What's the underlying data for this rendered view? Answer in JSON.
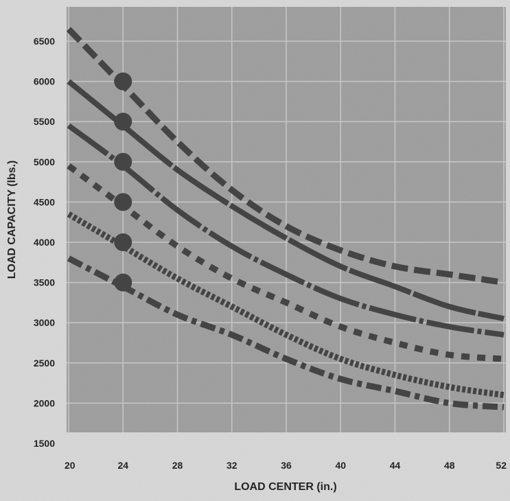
{
  "chart_data": {
    "type": "line",
    "xlabel": "LOAD CENTER (in.)",
    "ylabel": "LOAD CAPACITY (lbs.)",
    "xlim": [
      20,
      52
    ],
    "ylim": [
      1500,
      6700
    ],
    "x_ticks": [
      "20",
      "24",
      "28",
      "32",
      "36",
      "40",
      "44",
      "48",
      "52"
    ],
    "y_ticks": [
      "1500",
      "2000",
      "2500",
      "3000",
      "3500",
      "4000",
      "4500",
      "5000",
      "5500",
      "6000",
      "6500"
    ],
    "grid": true,
    "series": [
      {
        "style": "long-dash",
        "x": [
          20,
          24,
          28,
          32,
          36,
          40,
          44,
          48,
          52
        ],
        "values": [
          6650,
          5950,
          5250,
          4650,
          4200,
          3900,
          3700,
          3600,
          3500
        ]
      },
      {
        "style": "dash-stroke",
        "x": [
          20,
          24,
          28,
          32,
          36,
          40,
          44,
          48,
          52
        ],
        "values": [
          6000,
          5450,
          4900,
          4450,
          4050,
          3700,
          3450,
          3200,
          3050
        ]
      },
      {
        "style": "solid-dot",
        "x": [
          20,
          24,
          28,
          32,
          36,
          40,
          44,
          48,
          52
        ],
        "values": [
          5450,
          4950,
          4400,
          3950,
          3600,
          3300,
          3100,
          2950,
          2850
        ]
      },
      {
        "style": "slanted-dash",
        "x": [
          20,
          24,
          28,
          32,
          36,
          40,
          44,
          48,
          52
        ],
        "values": [
          4950,
          4450,
          3950,
          3550,
          3250,
          2950,
          2750,
          2600,
          2550
        ]
      },
      {
        "style": "fine-dash",
        "x": [
          20,
          24,
          28,
          32,
          36,
          40,
          44,
          48,
          52
        ],
        "values": [
          4350,
          3950,
          3550,
          3200,
          2850,
          2550,
          2350,
          2200,
          2100
        ]
      },
      {
        "style": "dash-dot",
        "x": [
          20,
          24,
          28,
          32,
          36,
          40,
          44,
          48,
          52
        ],
        "values": [
          3800,
          3450,
          3100,
          2850,
          2550,
          2300,
          2150,
          2000,
          1950
        ]
      }
    ],
    "markers": [
      {
        "x": 24,
        "y": 6000
      },
      {
        "x": 24,
        "y": 5500
      },
      {
        "x": 24,
        "y": 5000
      },
      {
        "x": 24,
        "y": 4500
      },
      {
        "x": 24,
        "y": 4000
      },
      {
        "x": 24,
        "y": 3500
      }
    ],
    "colors": {
      "plot_bg": "#9d9d9d",
      "grid": "#c8c8c8",
      "line": "#3e3e3e",
      "page_bg": "#d7d7d7"
    }
  }
}
